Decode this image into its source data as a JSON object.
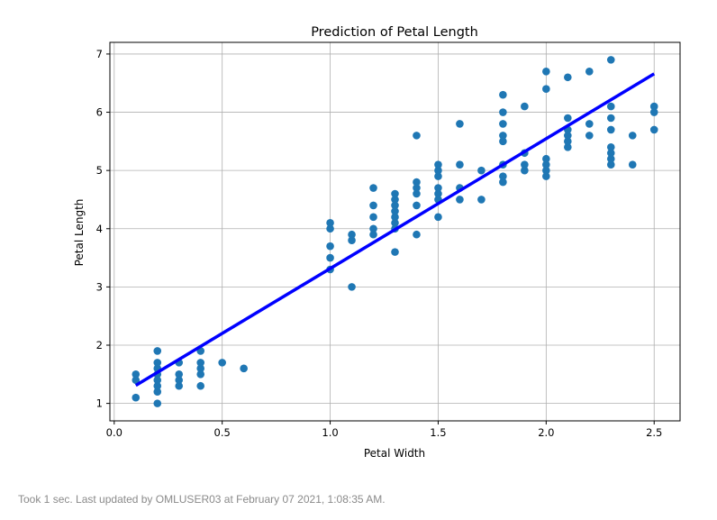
{
  "chart_data": {
    "type": "scatter",
    "title": "Prediction of Petal Length",
    "xlabel": "Petal Width",
    "ylabel": "Petal Length",
    "xlim": [
      -0.02,
      2.62
    ],
    "ylim": [
      0.7,
      7.2
    ],
    "xticks": [
      0.0,
      0.5,
      1.0,
      1.5,
      2.0,
      2.5
    ],
    "xtick_labels": [
      "0.0",
      "0.5",
      "1.0",
      "1.5",
      "2.0",
      "2.5"
    ],
    "yticks": [
      1,
      2,
      3,
      4,
      5,
      6,
      7
    ],
    "ytick_labels": [
      "1",
      "2",
      "3",
      "4",
      "5",
      "6",
      "7"
    ],
    "grid": true,
    "points": [
      [
        0.1,
        1.1
      ],
      [
        0.1,
        1.4
      ],
      [
        0.1,
        1.5
      ],
      [
        0.2,
        1.0
      ],
      [
        0.2,
        1.2
      ],
      [
        0.2,
        1.3
      ],
      [
        0.2,
        1.4
      ],
      [
        0.2,
        1.5
      ],
      [
        0.2,
        1.6
      ],
      [
        0.2,
        1.7
      ],
      [
        0.2,
        1.9
      ],
      [
        0.3,
        1.3
      ],
      [
        0.3,
        1.4
      ],
      [
        0.3,
        1.5
      ],
      [
        0.3,
        1.7
      ],
      [
        0.4,
        1.3
      ],
      [
        0.4,
        1.5
      ],
      [
        0.4,
        1.6
      ],
      [
        0.4,
        1.7
      ],
      [
        0.4,
        1.9
      ],
      [
        0.5,
        1.7
      ],
      [
        0.6,
        1.6
      ],
      [
        1.0,
        3.3
      ],
      [
        1.0,
        3.5
      ],
      [
        1.0,
        3.7
      ],
      [
        1.0,
        4.0
      ],
      [
        1.0,
        4.1
      ],
      [
        1.1,
        3.0
      ],
      [
        1.1,
        3.8
      ],
      [
        1.1,
        3.9
      ],
      [
        1.2,
        3.9
      ],
      [
        1.2,
        4.0
      ],
      [
        1.2,
        4.2
      ],
      [
        1.2,
        4.4
      ],
      [
        1.2,
        4.7
      ],
      [
        1.3,
        3.6
      ],
      [
        1.3,
        4.0
      ],
      [
        1.3,
        4.1
      ],
      [
        1.3,
        4.2
      ],
      [
        1.3,
        4.3
      ],
      [
        1.3,
        4.4
      ],
      [
        1.3,
        4.5
      ],
      [
        1.3,
        4.6
      ],
      [
        1.4,
        3.9
      ],
      [
        1.4,
        4.4
      ],
      [
        1.4,
        4.6
      ],
      [
        1.4,
        4.7
      ],
      [
        1.4,
        4.8
      ],
      [
        1.4,
        5.6
      ],
      [
        1.5,
        4.2
      ],
      [
        1.5,
        4.5
      ],
      [
        1.5,
        4.6
      ],
      [
        1.5,
        4.7
      ],
      [
        1.5,
        4.9
      ],
      [
        1.5,
        5.0
      ],
      [
        1.5,
        5.1
      ],
      [
        1.6,
        4.5
      ],
      [
        1.6,
        4.7
      ],
      [
        1.6,
        5.1
      ],
      [
        1.6,
        5.8
      ],
      [
        1.7,
        4.5
      ],
      [
        1.7,
        5.0
      ],
      [
        1.8,
        4.8
      ],
      [
        1.8,
        4.9
      ],
      [
        1.8,
        5.1
      ],
      [
        1.8,
        5.5
      ],
      [
        1.8,
        5.6
      ],
      [
        1.8,
        5.8
      ],
      [
        1.8,
        6.0
      ],
      [
        1.8,
        6.3
      ],
      [
        1.9,
        5.0
      ],
      [
        1.9,
        5.1
      ],
      [
        1.9,
        5.3
      ],
      [
        1.9,
        6.1
      ],
      [
        2.0,
        4.9
      ],
      [
        2.0,
        5.0
      ],
      [
        2.0,
        5.1
      ],
      [
        2.0,
        5.2
      ],
      [
        2.0,
        6.4
      ],
      [
        2.0,
        6.7
      ],
      [
        2.1,
        5.4
      ],
      [
        2.1,
        5.5
      ],
      [
        2.1,
        5.6
      ],
      [
        2.1,
        5.7
      ],
      [
        2.1,
        5.9
      ],
      [
        2.1,
        6.6
      ],
      [
        2.2,
        5.6
      ],
      [
        2.2,
        5.8
      ],
      [
        2.2,
        6.7
      ],
      [
        2.3,
        5.1
      ],
      [
        2.3,
        5.2
      ],
      [
        2.3,
        5.3
      ],
      [
        2.3,
        5.4
      ],
      [
        2.3,
        5.7
      ],
      [
        2.3,
        5.9
      ],
      [
        2.3,
        6.1
      ],
      [
        2.3,
        6.9
      ],
      [
        2.4,
        5.1
      ],
      [
        2.4,
        5.6
      ],
      [
        2.5,
        5.7
      ],
      [
        2.5,
        6.0
      ],
      [
        2.5,
        6.1
      ]
    ],
    "fit_line": [
      [
        0.1,
        1.31
      ],
      [
        2.5,
        6.66
      ]
    ],
    "point_color": "#1f77b4",
    "line_color": "#0000ff"
  },
  "footer": {
    "status_text": "Took 1 sec. Last updated by OMLUSER03 at February 07 2021, 1:08:35 AM."
  }
}
